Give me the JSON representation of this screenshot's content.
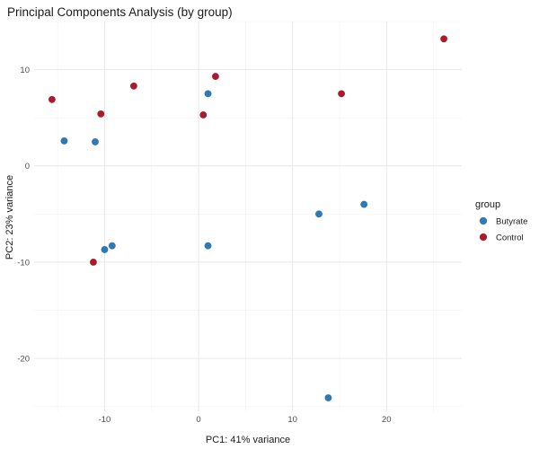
{
  "chart_data": {
    "type": "scatter",
    "title": "Principal Components Analysis (by group)",
    "xlabel": "PC1: 41% variance",
    "ylabel": "PC2: 23% variance",
    "xlim": [
      -17.5,
      28
    ],
    "ylim": [
      -25.5,
      15
    ],
    "xticks": [
      -10,
      0,
      10,
      20
    ],
    "yticks": [
      -20,
      -10,
      0,
      10
    ],
    "grid": true,
    "legend": {
      "title": "group",
      "position": "right"
    },
    "series": [
      {
        "name": "Butyrate",
        "color": "#2b7bba",
        "points": [
          {
            "x": -14.3,
            "y": 2.6
          },
          {
            "x": -11.0,
            "y": 2.5
          },
          {
            "x": 1.0,
            "y": 7.5
          },
          {
            "x": -9.2,
            "y": -8.3
          },
          {
            "x": -10.0,
            "y": -8.7
          },
          {
            "x": 1.0,
            "y": -8.3
          },
          {
            "x": 12.8,
            "y": -5.0
          },
          {
            "x": 17.6,
            "y": -4.0
          },
          {
            "x": 13.8,
            "y": -24.1
          }
        ]
      },
      {
        "name": "Control",
        "color": "#b2182b",
        "points": [
          {
            "x": -15.6,
            "y": 6.9
          },
          {
            "x": -10.4,
            "y": 5.4
          },
          {
            "x": -6.9,
            "y": 8.3
          },
          {
            "x": 1.8,
            "y": 9.3
          },
          {
            "x": 0.5,
            "y": 5.3
          },
          {
            "x": 15.2,
            "y": 7.5
          },
          {
            "x": 26.1,
            "y": 13.2
          },
          {
            "x": -11.2,
            "y": -10.0
          }
        ]
      }
    ]
  }
}
